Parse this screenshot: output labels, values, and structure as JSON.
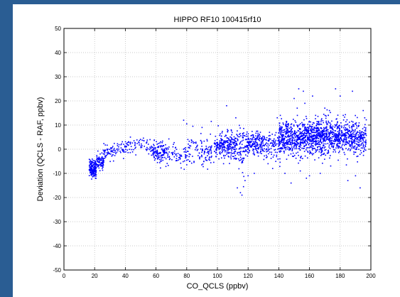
{
  "page": {
    "background_color": "#2a5d93",
    "figure_background": "#ffffff"
  },
  "chart_data": {
    "type": "scatter",
    "title": "HIPPO  RF10  100415rf10",
    "xlabel": "CO_QCLS (ppbv)",
    "ylabel": "Deviation (QCLS - RAF, ppbv)",
    "xlim": [
      0,
      200
    ],
    "ylim": [
      -50,
      50
    ],
    "xticks": [
      0,
      20,
      40,
      60,
      80,
      100,
      120,
      140,
      160,
      180,
      200
    ],
    "yticks": [
      -50,
      -40,
      -30,
      -20,
      -10,
      0,
      10,
      20,
      30,
      40,
      50
    ],
    "grid": true,
    "marker_color": "#0000ff",
    "series": [
      {
        "clusters": [
          {
            "x": [
              16.5,
              21
            ],
            "y_mean": -8,
            "y_sd": 1.8,
            "n": 160
          },
          {
            "x": [
              21,
              26
            ],
            "y_mean": -5,
            "y_sd": 1.6,
            "n": 90
          },
          {
            "x": [
              26,
              34
            ],
            "y_mean": -1.5,
            "y_sd": 1.4,
            "n": 55
          },
          {
            "x": [
              34,
              42
            ],
            "y_mean": 0.5,
            "y_sd": 1.5,
            "n": 40
          },
          {
            "x": [
              42,
              57
            ],
            "y_mean": 1.5,
            "y_sd": 1.6,
            "n": 55
          },
          {
            "x": [
              57,
              67
            ],
            "y_mean": -1.5,
            "y_sd": 2.2,
            "n": 130
          },
          {
            "x": [
              67,
              80
            ],
            "y_mean": -2.5,
            "y_sd": 2.2,
            "n": 70
          },
          {
            "x": [
              80,
              98
            ],
            "y_mean": -1,
            "y_sd": 3,
            "n": 110
          },
          {
            "x": [
              98,
              112
            ],
            "y_mean": 1.5,
            "y_sd": 2.6,
            "n": 240
          },
          {
            "x": [
              112,
              118
            ],
            "y_mean": 0.5,
            "y_sd": 4.5,
            "n": 80
          },
          {
            "x": [
              118,
              130
            ],
            "y_mean": 2,
            "y_sd": 2.4,
            "n": 190
          },
          {
            "x": [
              130,
              140
            ],
            "y_mean": 1.5,
            "y_sd": 2.5,
            "n": 90
          },
          {
            "x": [
              140,
              160
            ],
            "y_mean": 4.5,
            "y_sd": 3.5,
            "n": 520
          },
          {
            "x": [
              160,
              180
            ],
            "y_mean": 5,
            "y_sd": 3.6,
            "n": 560
          },
          {
            "x": [
              180,
              197
            ],
            "y_mean": 5,
            "y_sd": 3.4,
            "n": 340
          }
        ],
        "outliers": [
          [
            78,
            12
          ],
          [
            80,
            10.5
          ],
          [
            84,
            9.5
          ],
          [
            90,
            9
          ],
          [
            96,
            11.5
          ],
          [
            106,
            18
          ],
          [
            112,
            13
          ],
          [
            113,
            -16
          ],
          [
            115,
            -18
          ],
          [
            117,
            -15.5
          ],
          [
            118,
            -13
          ],
          [
            120,
            -11
          ],
          [
            116,
            -19
          ],
          [
            124,
            -10
          ],
          [
            133,
            -6
          ],
          [
            136,
            -8
          ],
          [
            139,
            13
          ],
          [
            141,
            14
          ],
          [
            144,
            -10
          ],
          [
            148,
            -14
          ],
          [
            150,
            21
          ],
          [
            152,
            17
          ],
          [
            153,
            25
          ],
          [
            154,
            -9
          ],
          [
            156,
            24
          ],
          [
            157,
            19
          ],
          [
            158,
            -12
          ],
          [
            160,
            -11
          ],
          [
            162,
            22
          ],
          [
            164,
            14
          ],
          [
            167,
            -10
          ],
          [
            170,
            17
          ],
          [
            173,
            16
          ],
          [
            177,
            25
          ],
          [
            180,
            22
          ],
          [
            182,
            14
          ],
          [
            185,
            -13
          ],
          [
            188,
            24
          ],
          [
            190,
            -11
          ],
          [
            193,
            -16
          ],
          [
            195,
            16
          ],
          [
            196,
            13
          ],
          [
            101,
            -4
          ],
          [
            104,
            -6
          ],
          [
            109,
            8
          ],
          [
            126,
            5
          ],
          [
            128,
            7
          ]
        ]
      }
    ]
  }
}
